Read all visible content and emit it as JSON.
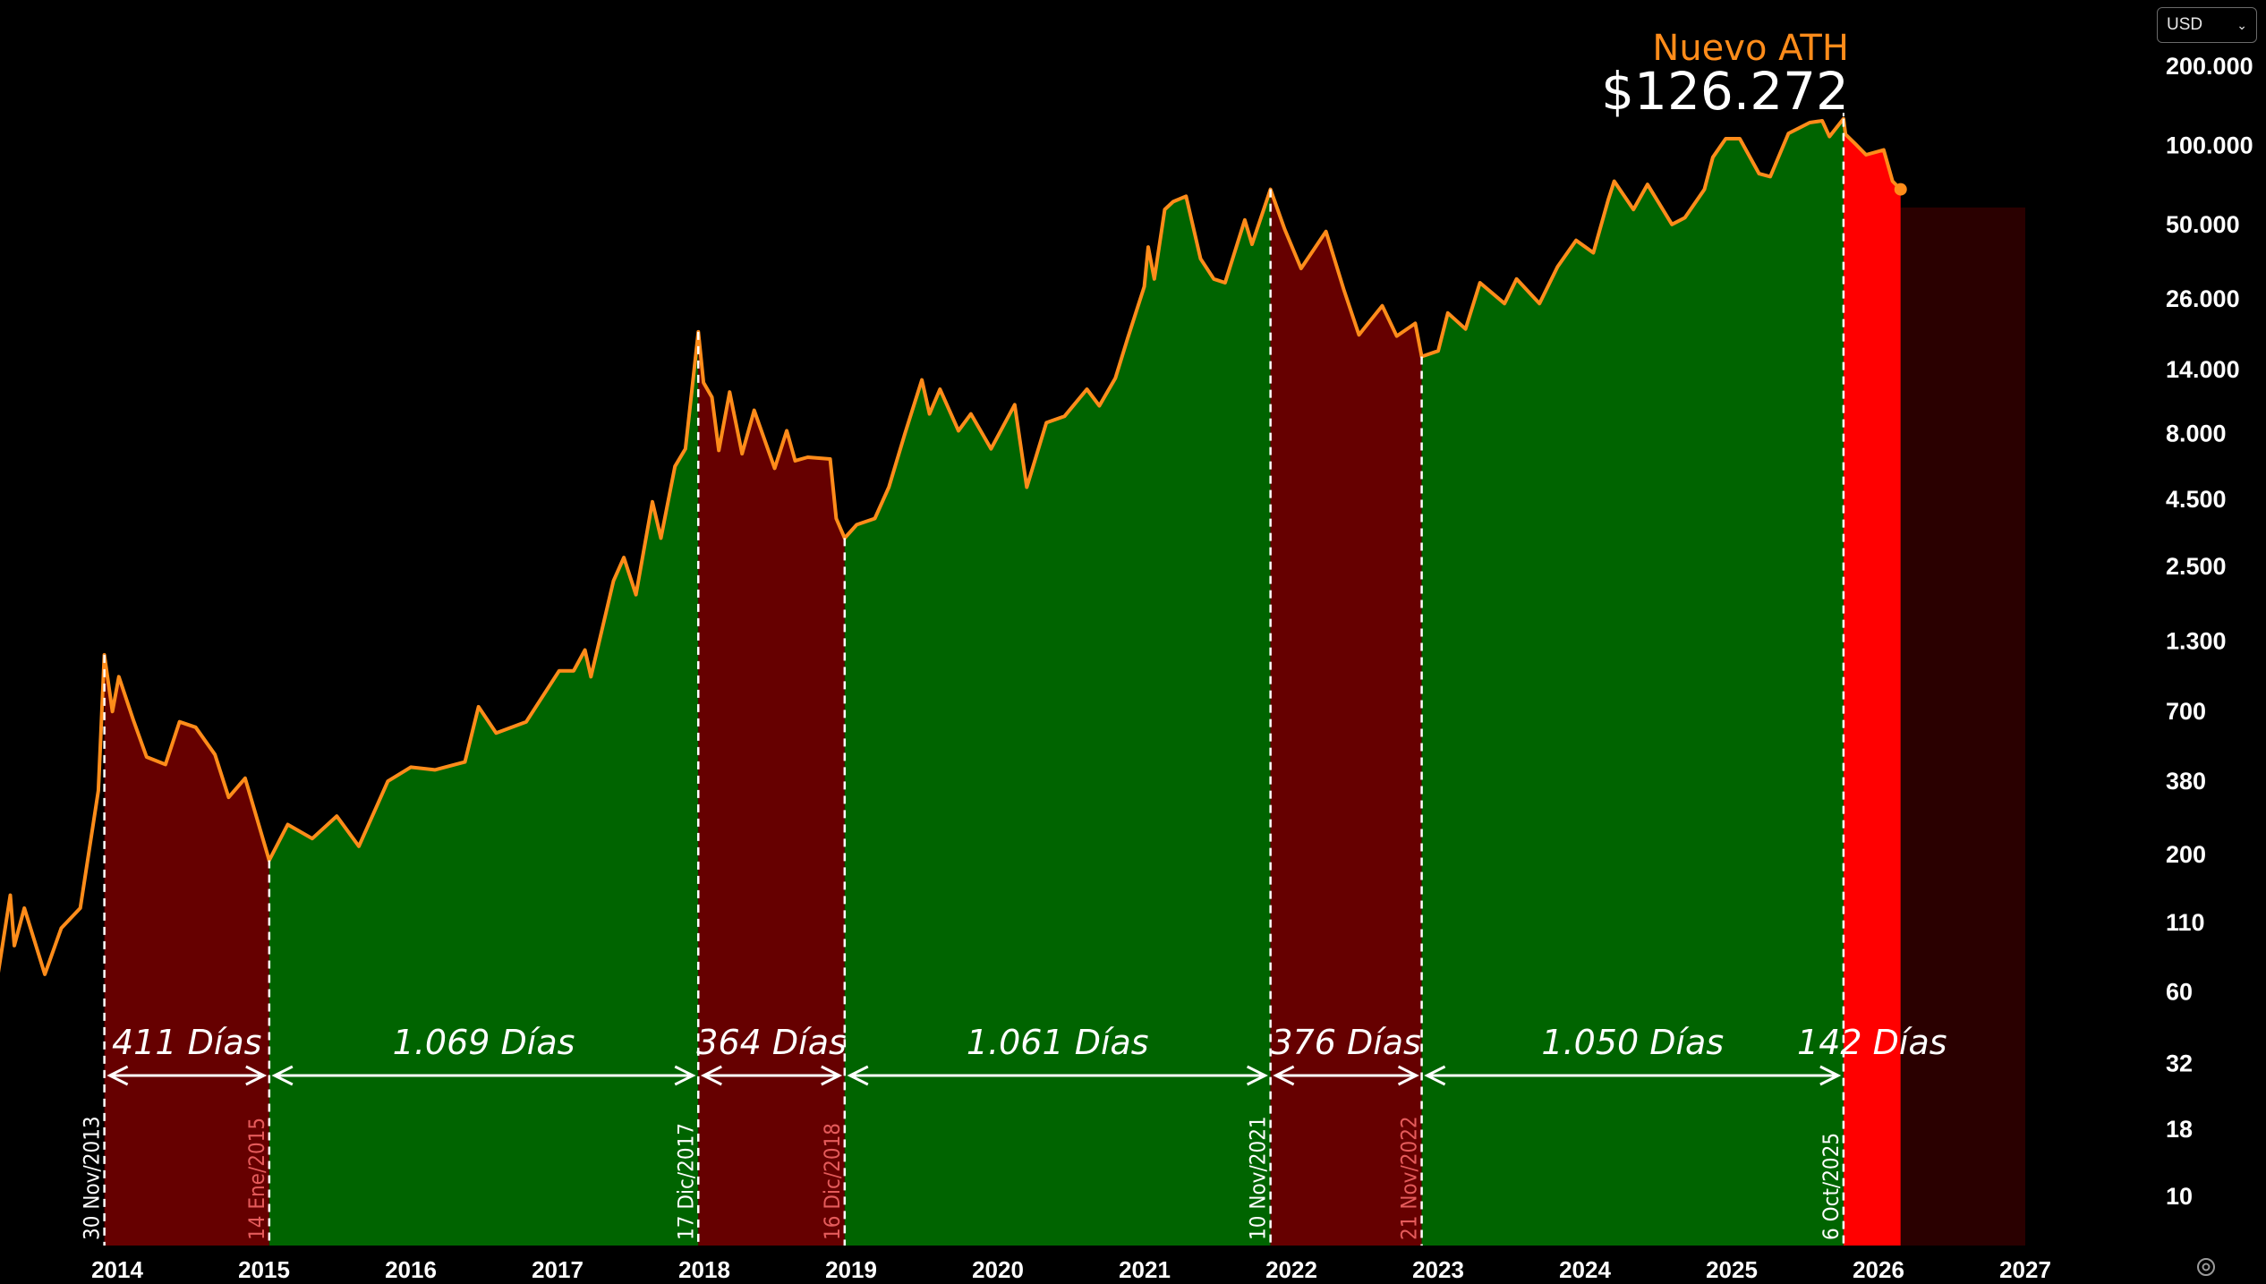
{
  "currency_select": {
    "value": "USD"
  },
  "annotation": {
    "label": "Nuevo ATH",
    "value": "$126.272"
  },
  "colors": {
    "price_line": "#ff8c1a",
    "bull_fill": "#006400",
    "bear_fill": "#660000",
    "current_fill": "#ff0000",
    "projection_fill": "#2a0000",
    "date_bull": "#ffffff",
    "date_bear": "#e55b5b"
  },
  "chart_data": {
    "type": "area",
    "y_scale": "log",
    "y_ticks": [
      {
        "label": "200.000",
        "value": 200000
      },
      {
        "label": "100.000",
        "value": 100000
      },
      {
        "label": "50.000",
        "value": 50000
      },
      {
        "label": "26.000",
        "value": 26000
      },
      {
        "label": "14.000",
        "value": 14000
      },
      {
        "label": "8.000",
        "value": 8000
      },
      {
        "label": "4.500",
        "value": 4500
      },
      {
        "label": "2.500",
        "value": 2500
      },
      {
        "label": "1.300",
        "value": 1300
      },
      {
        "label": "700",
        "value": 700
      },
      {
        "label": "380",
        "value": 380
      },
      {
        "label": "200",
        "value": 200
      },
      {
        "label": "110",
        "value": 110
      },
      {
        "label": "60",
        "value": 60
      },
      {
        "label": "32",
        "value": 32
      },
      {
        "label": "18",
        "value": 18
      },
      {
        "label": "10",
        "value": 10
      }
    ],
    "x_ticks": [
      "2014",
      "2015",
      "2016",
      "2017",
      "2018",
      "2019",
      "2020",
      "2021",
      "2022",
      "2023",
      "2024",
      "2025",
      "2026",
      "2027"
    ],
    "cycles": [
      {
        "phase": "bear",
        "start": "2013-11-30",
        "end": "2015-01-14",
        "start_label": "30 Nov/2013",
        "end_label": "14 Ene/2015",
        "duration": "411 Días"
      },
      {
        "phase": "bull",
        "start": "2015-01-14",
        "end": "2017-12-17",
        "start_label": "14 Ene/2015",
        "end_label": "17 Dic/2017",
        "duration": "1.069 Días"
      },
      {
        "phase": "bear",
        "start": "2017-12-17",
        "end": "2018-12-16",
        "start_label": "17 Dic/2017",
        "end_label": "16 Dic/2018",
        "duration": "364 Días"
      },
      {
        "phase": "bull",
        "start": "2018-12-16",
        "end": "2021-11-10",
        "start_label": "16 Dic/2018",
        "end_label": "10 Nov/2021",
        "duration": "1.061 Días"
      },
      {
        "phase": "bear",
        "start": "2021-11-10",
        "end": "2022-11-21",
        "start_label": "10 Nov/2021",
        "end_label": "21 Nov/2022",
        "duration": "376 Días"
      },
      {
        "phase": "bull",
        "start": "2022-11-21",
        "end": "2025-10-06",
        "start_label": "21 Nov/2022",
        "end_label": "6 Oct/2025",
        "duration": "1.050 Días"
      },
      {
        "phase": "current",
        "start": "2025-10-06",
        "end": "2026-02-25",
        "duration": "142 Días"
      },
      {
        "phase": "projection",
        "start": "2026-02-25",
        "end": "2027-01-01"
      }
    ],
    "series": [
      {
        "points": [
          [
            "2013-01-01",
            14
          ],
          [
            "2013-02-01",
            30
          ],
          [
            "2013-04-10",
            140
          ],
          [
            "2013-04-20",
            90
          ],
          [
            "2013-05-15",
            125
          ],
          [
            "2013-07-05",
            70
          ],
          [
            "2013-08-15",
            105
          ],
          [
            "2013-10-01",
            125
          ],
          [
            "2013-11-15",
            350
          ],
          [
            "2013-11-30",
            1150
          ],
          [
            "2013-12-20",
            700
          ],
          [
            "2014-01-05",
            950
          ],
          [
            "2014-02-10",
            650
          ],
          [
            "2014-03-15",
            470
          ],
          [
            "2014-05-01",
            440
          ],
          [
            "2014-06-05",
            640
          ],
          [
            "2014-07-15",
            610
          ],
          [
            "2014-09-01",
            480
          ],
          [
            "2014-10-05",
            330
          ],
          [
            "2014-11-15",
            390
          ],
          [
            "2015-01-14",
            190
          ],
          [
            "2015-03-01",
            260
          ],
          [
            "2015-05-01",
            230
          ],
          [
            "2015-07-01",
            280
          ],
          [
            "2015-08-25",
            215
          ],
          [
            "2015-11-05",
            380
          ],
          [
            "2016-01-01",
            430
          ],
          [
            "2016-03-01",
            420
          ],
          [
            "2016-05-15",
            450
          ],
          [
            "2016-06-18",
            730
          ],
          [
            "2016-08-01",
            580
          ],
          [
            "2016-10-15",
            640
          ],
          [
            "2017-01-05",
            1000
          ],
          [
            "2017-02-10",
            1000
          ],
          [
            "2017-03-10",
            1200
          ],
          [
            "2017-03-25",
            950
          ],
          [
            "2017-05-20",
            2200
          ],
          [
            "2017-06-15",
            2700
          ],
          [
            "2017-07-15",
            1950
          ],
          [
            "2017-08-25",
            4400
          ],
          [
            "2017-09-15",
            3200
          ],
          [
            "2017-10-20",
            6000
          ],
          [
            "2017-11-15",
            7000
          ],
          [
            "2017-12-17",
            19500
          ],
          [
            "2017-12-30",
            12500
          ],
          [
            "2018-01-20",
            11000
          ],
          [
            "2018-02-06",
            6900
          ],
          [
            "2018-03-05",
            11500
          ],
          [
            "2018-04-05",
            6700
          ],
          [
            "2018-05-05",
            9800
          ],
          [
            "2018-06-25",
            5900
          ],
          [
            "2018-07-25",
            8200
          ],
          [
            "2018-08-15",
            6300
          ],
          [
            "2018-09-15",
            6500
          ],
          [
            "2018-11-10",
            6400
          ],
          [
            "2018-11-25",
            3800
          ],
          [
            "2018-12-16",
            3200
          ],
          [
            "2019-01-15",
            3600
          ],
          [
            "2019-03-01",
            3800
          ],
          [
            "2019-04-05",
            5000
          ],
          [
            "2019-05-15",
            8000
          ],
          [
            "2019-06-26",
            12800
          ],
          [
            "2019-07-15",
            9500
          ],
          [
            "2019-08-10",
            11800
          ],
          [
            "2019-09-25",
            8200
          ],
          [
            "2019-10-26",
            9500
          ],
          [
            "2019-12-15",
            7000
          ],
          [
            "2020-02-12",
            10300
          ],
          [
            "2020-03-13",
            5000
          ],
          [
            "2020-05-01",
            8800
          ],
          [
            "2020-06-15",
            9300
          ],
          [
            "2020-08-10",
            11800
          ],
          [
            "2020-09-10",
            10200
          ],
          [
            "2020-10-20",
            13000
          ],
          [
            "2020-11-20",
            18500
          ],
          [
            "2020-12-31",
            29000
          ],
          [
            "2021-01-10",
            41000
          ],
          [
            "2021-01-25",
            31000
          ],
          [
            "2021-02-20",
            57000
          ],
          [
            "2021-03-13",
            61000
          ],
          [
            "2021-04-14",
            64000
          ],
          [
            "2021-05-20",
            37000
          ],
          [
            "2021-06-22",
            31000
          ],
          [
            "2021-07-20",
            30000
          ],
          [
            "2021-09-07",
            52000
          ],
          [
            "2021-09-25",
            42000
          ],
          [
            "2021-11-10",
            68000
          ],
          [
            "2021-12-15",
            48000
          ],
          [
            "2022-01-25",
            34000
          ],
          [
            "2022-03-28",
            47000
          ],
          [
            "2022-05-12",
            28000
          ],
          [
            "2022-06-18",
            19000
          ],
          [
            "2022-08-15",
            24500
          ],
          [
            "2022-09-20",
            18800
          ],
          [
            "2022-11-05",
            21000
          ],
          [
            "2022-11-21",
            15700
          ],
          [
            "2023-01-01",
            16500
          ],
          [
            "2023-01-25",
            23000
          ],
          [
            "2023-03-10",
            20000
          ],
          [
            "2023-04-15",
            30000
          ],
          [
            "2023-06-15",
            25000
          ],
          [
            "2023-07-15",
            31000
          ],
          [
            "2023-09-10",
            25000
          ],
          [
            "2023-10-25",
            34500
          ],
          [
            "2023-12-10",
            43500
          ],
          [
            "2024-01-22",
            39000
          ],
          [
            "2024-02-28",
            62000
          ],
          [
            "2024-03-14",
            73000
          ],
          [
            "2024-05-01",
            57000
          ],
          [
            "2024-06-05",
            71000
          ],
          [
            "2024-08-05",
            50000
          ],
          [
            "2024-09-06",
            53000
          ],
          [
            "2024-10-25",
            68000
          ],
          [
            "2024-11-15",
            90000
          ],
          [
            "2024-12-17",
            106000
          ],
          [
            "2025-01-21",
            106000
          ],
          [
            "2025-03-10",
            78000
          ],
          [
            "2025-04-07",
            76000
          ],
          [
            "2025-05-22",
            111000
          ],
          [
            "2025-07-14",
            122000
          ],
          [
            "2025-08-14",
            124000
          ],
          [
            "2025-09-01",
            108000
          ],
          [
            "2025-10-06",
            126272
          ],
          [
            "2025-10-11",
            110000
          ],
          [
            "2025-11-05",
            101000
          ],
          [
            "2025-12-01",
            92000
          ],
          [
            "2026-01-14",
            96000
          ],
          [
            "2026-02-05",
            73000
          ],
          [
            "2026-02-25",
            68000
          ]
        ]
      }
    ]
  }
}
